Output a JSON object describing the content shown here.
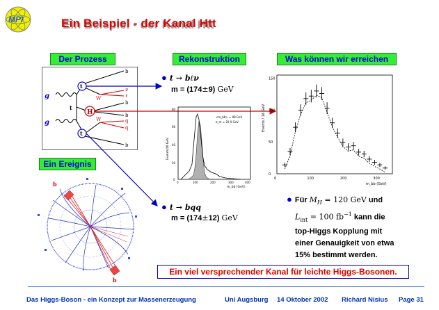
{
  "logo": {
    "text": "MPI"
  },
  "title": "Ein Beispiel - der Kanal Htt",
  "boxes": {
    "prozess": "Der Prozess",
    "rekonstruktion": "Rekonstruktion",
    "erreichen": "Was können wir erreichen",
    "ereignis": "Ein Ereignis"
  },
  "feynman": {
    "g1": "g",
    "g2": "g",
    "t_top": "t",
    "t_mid": "t",
    "t_bot": "t",
    "H": "H",
    "W1": "W",
    "W2": "W",
    "b1": "b",
    "nu": "ν",
    "l": "ℓ",
    "b2": "b",
    "b3": "b",
    "q1": "q",
    "q2": "q",
    "b4": "b"
  },
  "reco1": {
    "channel": "t → bℓν",
    "mass_label": "m = (174",
    "pm": "±",
    "err": "9) ",
    "unit": "GeV"
  },
  "reco2": {
    "channel": "t → bqq",
    "mass_label": "m = (174",
    "pm": "±",
    "err": "12) ",
    "unit": "GeV"
  },
  "hist_small": {
    "ylabel": "Events/(6 GeV",
    "xlabel": "m_bb (GeV)",
    "legend1": "<m_bb> = 98 GeV",
    "legend2": "σ_m = 20.0 GeV",
    "xticks": [
      "0",
      "100",
      "200",
      "300",
      "400"
    ],
    "yticks": [
      "0",
      "20",
      "40",
      "60",
      "80"
    ]
  },
  "hist_big": {
    "ylabel": "Events / 16 GeV",
    "xlabel": "m_bb (GeV)",
    "xticks": [
      "0",
      "100",
      "200",
      "300"
    ],
    "yticks": [
      "0",
      "50",
      "100",
      "150"
    ]
  },
  "chart_data": {
    "type": "scatter",
    "xlabel": "m_bb (GeV)",
    "ylabel": "Events / 16 GeV",
    "xlim": [
      0,
      350
    ],
    "ylim": [
      0,
      155
    ],
    "series": [
      {
        "x": [
          24,
          40,
          56,
          72,
          88,
          104,
          120,
          136,
          152,
          168,
          184,
          200,
          216,
          232,
          248,
          264,
          280,
          296,
          312,
          328
        ],
        "y": [
          14,
          35,
          73,
          100,
          118,
          122,
          130,
          126,
          103,
          80,
          64,
          49,
          42,
          44,
          34,
          31,
          23,
          18,
          14,
          9
        ]
      }
    ]
  },
  "ereignis_labels": {
    "b_top": "b",
    "b_bottom": "b"
  },
  "summary": {
    "line1a": "Für ",
    "mh": "M",
    "mh_sub": "H",
    "line1b": " = 120 GeV",
    "line1c": " und",
    "lint": "L",
    "lint_sub": "int",
    "line2a": " = 100 fb",
    "line2sup": "−1",
    "line2b": " kann die",
    "line3": "top-Higgs Kopplung mit",
    "line4": "einer Genauigkeit von etwa",
    "line5": "15% bestimmt werden."
  },
  "callout": "Ein viel versprechender Kanal für leichte Higgs-Bosonen.",
  "footer": {
    "left": "Das Higgs-Boson - ein Konzept zur Massenerzeugung",
    "uni": "Uni Augsburg",
    "date": "14 Oktober 2002",
    "author": "Richard Nisius",
    "page": "Page 31"
  }
}
